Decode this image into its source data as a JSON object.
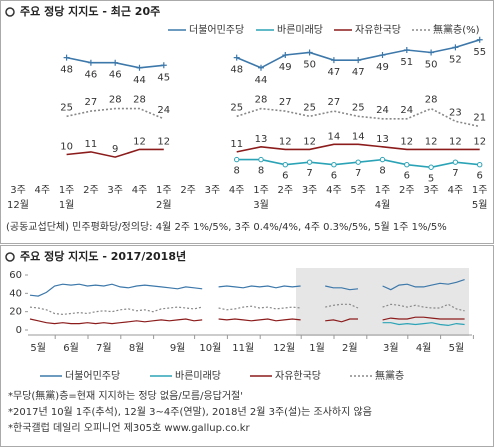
{
  "chart_data": [
    {
      "type": "line",
      "title": "주요 정당 지지도 - 최근 20주",
      "categories": [
        "3주",
        "4주",
        "1주",
        "2주",
        "3주",
        "4주",
        "1주",
        "2주",
        "3주",
        "4주",
        "1주",
        "2주",
        "3주",
        "4주",
        "5주",
        "1주",
        "2주",
        "3주",
        "4주",
        "1주"
      ],
      "months": [
        "12월",
        null,
        "1월",
        null,
        null,
        null,
        "2월",
        null,
        null,
        null,
        "3월",
        null,
        null,
        null,
        null,
        "4월",
        null,
        null,
        null,
        "5월"
      ],
      "ylim": [
        0,
        60
      ],
      "series": [
        {
          "name": "더불어민주당",
          "color": "#3d78aa",
          "marker": "plus",
          "values": [
            null,
            null,
            48,
            46,
            46,
            44,
            45,
            null,
            null,
            48,
            44,
            49,
            50,
            47,
            47,
            49,
            51,
            50,
            52,
            55
          ]
        },
        {
          "name": "바른미래당",
          "color": "#2ba3b6",
          "marker": "circle",
          "values": [
            null,
            null,
            null,
            null,
            null,
            null,
            null,
            null,
            null,
            8,
            8,
            6,
            7,
            6,
            7,
            8,
            6,
            5,
            7,
            6
          ]
        },
        {
          "name": "자유한국당",
          "color": "#8c1c1c",
          "values": [
            null,
            null,
            10,
            11,
            9,
            12,
            12,
            null,
            null,
            11,
            13,
            12,
            12,
            14,
            14,
            13,
            12,
            12,
            12,
            12
          ]
        },
        {
          "name": "無黨층(%)",
          "color": "#888888",
          "dash": true,
          "values": [
            null,
            null,
            25,
            27,
            28,
            28,
            24,
            null,
            null,
            25,
            28,
            27,
            25,
            27,
            25,
            24,
            24,
            28,
            23,
            21
          ]
        }
      ],
      "note": "(공동교섭단체) 민주평화당/정의당: 4월 2주 1%/5%, 3주 0.4%/4%, 4주 0.3%/5%, 5월 1주 1%/5%"
    },
    {
      "type": "line",
      "title": "주요 정당 지지도 - 2017/2018년",
      "categories": [
        null,
        "5월",
        null,
        null,
        null,
        "6월",
        null,
        null,
        null,
        "7월",
        null,
        null,
        null,
        "8월",
        null,
        null,
        null,
        null,
        "9월",
        null,
        null,
        null,
        "10월",
        null,
        null,
        null,
        "11월",
        null,
        null,
        null,
        null,
        "12월",
        null,
        null,
        null,
        "1월",
        null,
        null,
        null,
        "2월",
        null,
        null,
        null,
        null,
        "3월",
        null,
        null,
        null,
        "4월",
        null,
        null,
        null,
        "5월",
        null
      ],
      "ylim": [
        0,
        60
      ],
      "yticks": [
        0,
        20,
        40,
        60
      ],
      "series": [
        {
          "name": "더불어민주당",
          "color": "#3d78aa",
          "values": [
            38,
            37,
            41,
            48,
            50,
            49,
            50,
            48,
            49,
            48,
            50,
            47,
            46,
            48,
            49,
            48,
            47,
            46,
            45,
            47,
            46,
            45,
            null,
            47,
            48,
            47,
            46,
            48,
            47,
            48,
            46,
            48,
            47,
            48,
            null,
            null,
            48,
            46,
            46,
            44,
            45,
            null,
            null,
            48,
            44,
            49,
            50,
            47,
            47,
            49,
            51,
            50,
            52,
            55
          ]
        },
        {
          "name": "바른미래당",
          "color": "#2ba3b6",
          "values": [
            null,
            null,
            null,
            null,
            null,
            null,
            null,
            null,
            null,
            null,
            null,
            null,
            null,
            null,
            null,
            null,
            null,
            null,
            null,
            null,
            null,
            null,
            null,
            null,
            null,
            null,
            null,
            null,
            null,
            null,
            null,
            null,
            null,
            null,
            null,
            null,
            null,
            null,
            null,
            null,
            null,
            null,
            null,
            8,
            8,
            6,
            7,
            6,
            7,
            8,
            6,
            5,
            7,
            6
          ]
        },
        {
          "name": "자유한국당",
          "color": "#8c1c1c",
          "values": [
            12,
            10,
            8,
            7,
            8,
            7,
            7,
            8,
            7,
            8,
            7,
            8,
            9,
            10,
            9,
            10,
            11,
            10,
            11,
            12,
            10,
            11,
            null,
            12,
            11,
            12,
            11,
            10,
            11,
            12,
            10,
            11,
            12,
            11,
            null,
            null,
            10,
            11,
            9,
            12,
            12,
            null,
            null,
            11,
            13,
            12,
            12,
            14,
            14,
            13,
            12,
            12,
            12,
            12
          ]
        },
        {
          "name": "無黨층",
          "color": "#888888",
          "dash": true,
          "values": [
            25,
            24,
            22,
            18,
            17,
            18,
            19,
            18,
            20,
            21,
            20,
            22,
            23,
            21,
            22,
            20,
            23,
            24,
            25,
            24,
            23,
            25,
            null,
            24,
            22,
            23,
            25,
            26,
            24,
            25,
            23,
            24,
            25,
            24,
            null,
            null,
            25,
            27,
            28,
            28,
            24,
            null,
            null,
            25,
            28,
            27,
            25,
            27,
            25,
            24,
            24,
            28,
            23,
            21
          ]
        }
      ]
    }
  ],
  "footnotes": [
    "*무당(無黨)층=현재 지지하는 정당 없음/모름/응답거절'",
    "*2017년 10월 1주(추석), 12월 3~4주(연말), 2018년 2월 3주(설)는 조사하지 않음",
    "*한국갤럽 데일리 오피니언 제305호 www.gallup.co.kr"
  ]
}
